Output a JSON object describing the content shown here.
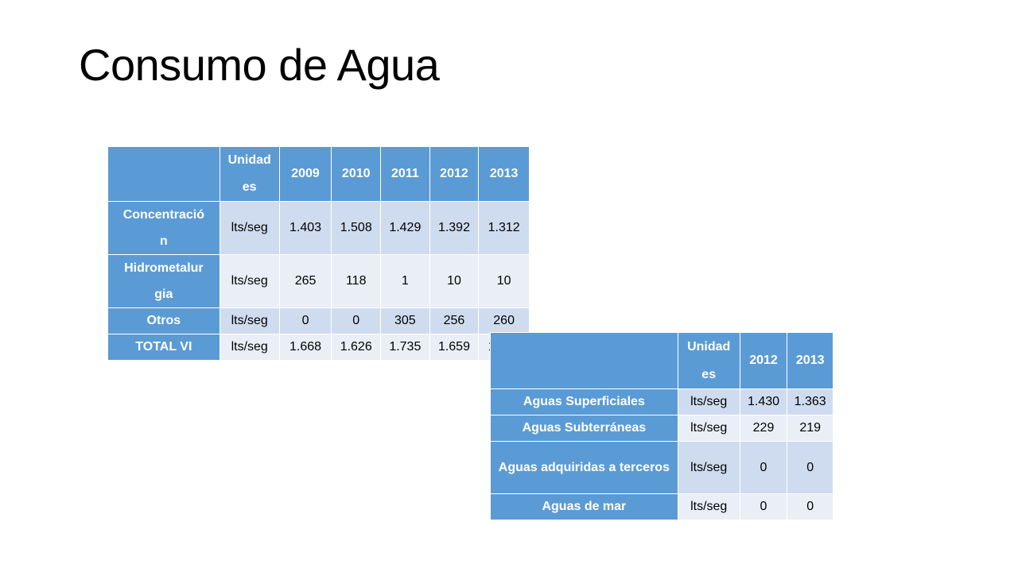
{
  "title": "Consumo de Agua",
  "table1": {
    "headers": [
      "",
      "Unidades",
      "2009",
      "2010",
      "2011",
      "2012",
      "2013"
    ],
    "header_unit_display": "Unidad\nes",
    "rows": [
      {
        "label": "Concentración",
        "unit": "lts/seg",
        "values": [
          "1.403",
          "1.508",
          "1.429",
          "1.392",
          "1.312"
        ]
      },
      {
        "label": "Hidrometalurgia",
        "unit": "lts/seg",
        "values": [
          "265",
          "118",
          "1",
          "10",
          "10"
        ]
      },
      {
        "label": "Otros",
        "unit": "lts/seg",
        "values": [
          "0",
          "0",
          "305",
          "256",
          "260"
        ]
      },
      {
        "label": "TOTAL VI",
        "unit": "lts/seg",
        "values": [
          "1.668",
          "1.626",
          "1.735",
          "1.659",
          "1.582"
        ]
      }
    ]
  },
  "table2": {
    "headers": [
      "",
      "Unidades",
      "2012",
      "2013"
    ],
    "rows": [
      {
        "label": "Aguas Superficiales",
        "unit": "lts/seg",
        "values": [
          "1.430",
          "1.363"
        ]
      },
      {
        "label": "Aguas Subterráneas",
        "unit": "lts/seg",
        "values": [
          "229",
          "219"
        ]
      },
      {
        "label": "Aguas adquiridas a terceros",
        "unit": "lts/seg",
        "values": [
          "0",
          "0"
        ]
      },
      {
        "label": "Aguas de mar",
        "unit": "lts/seg",
        "values": [
          "0",
          "0"
        ]
      }
    ]
  }
}
